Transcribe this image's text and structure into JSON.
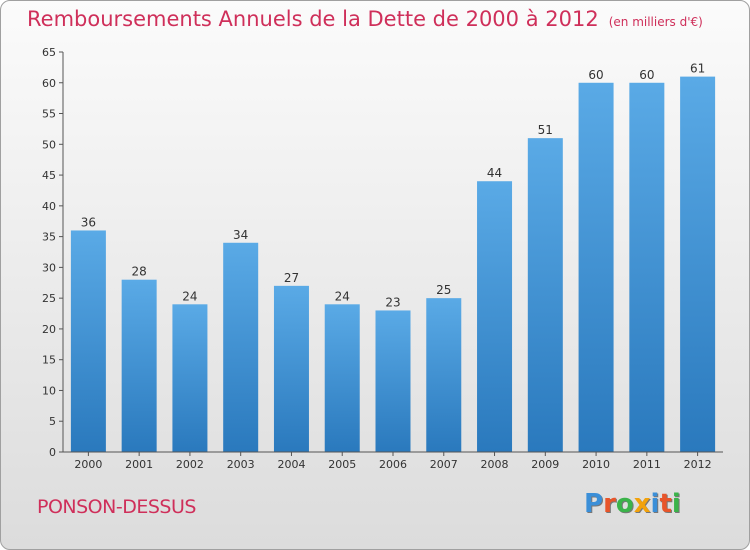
{
  "title": "Remboursements Annuels de la Dette de 2000 à 2012",
  "subtitle": "(en milliers d'€)",
  "commune": "PONSON-DESSUS",
  "logo": {
    "letters": [
      "P",
      "r",
      "o",
      "x",
      "i",
      "t",
      "i"
    ],
    "colors": [
      "#3b8fd8",
      "#e8552a",
      "#3bb34a",
      "#f2a20c",
      "#3b8fd8",
      "#e8552a",
      "#3bb34a"
    ]
  },
  "colors": {
    "bar_top": "#5aaae6",
    "bar_bottom": "#2a79bd",
    "title": "#cf2f5a"
  },
  "chart_data": {
    "type": "bar",
    "categories": [
      "2000",
      "2001",
      "2002",
      "2003",
      "2004",
      "2005",
      "2006",
      "2007",
      "2008",
      "2009",
      "2010",
      "2011",
      "2012"
    ],
    "values": [
      36,
      28,
      24,
      34,
      27,
      24,
      23,
      25,
      44,
      51,
      60,
      60,
      61
    ],
    "title": "Remboursements Annuels de la Dette de 2000 à 2012",
    "subtitle": "(en milliers d'€)",
    "xlabel": "",
    "ylabel": "",
    "ylim": [
      0,
      65
    ],
    "yticks": [
      0,
      5,
      10,
      15,
      20,
      25,
      30,
      35,
      40,
      45,
      50,
      55,
      60,
      65
    ],
    "grid": false,
    "legend": "none"
  }
}
